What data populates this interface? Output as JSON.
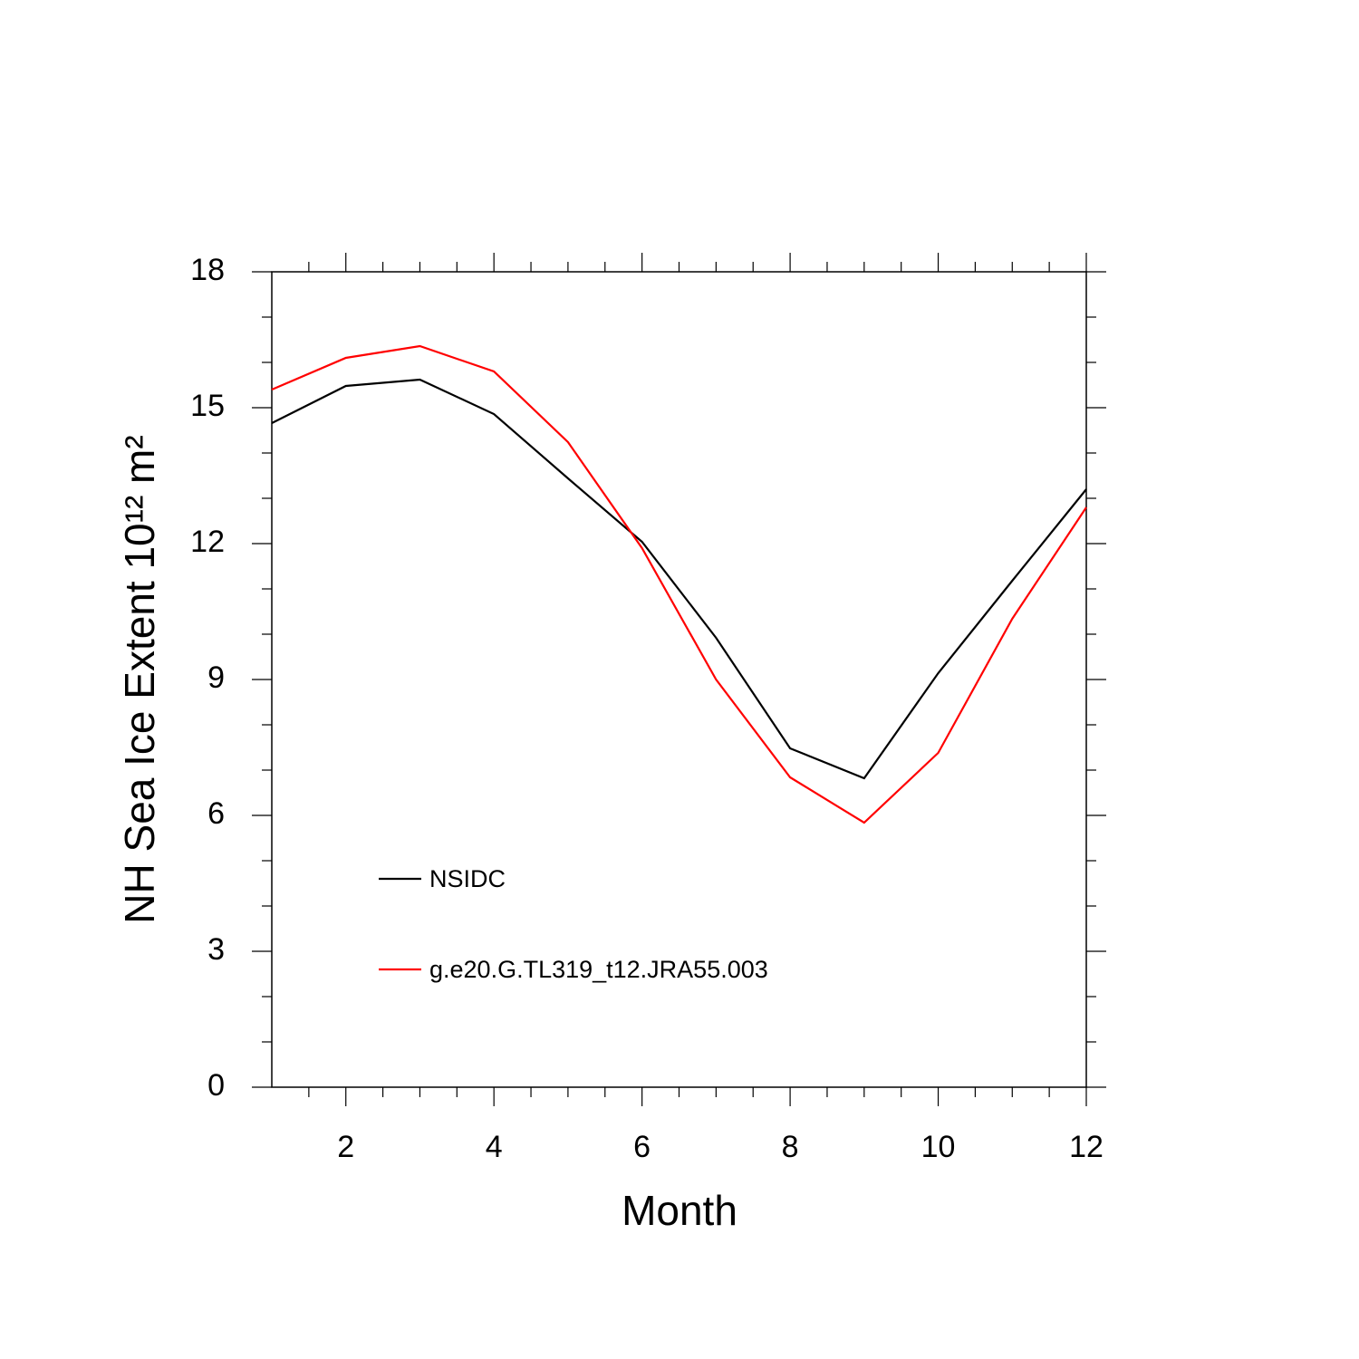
{
  "chart_data": {
    "type": "line",
    "xlabel": "Month",
    "ylabel": "NH Sea Ice Extent 10¹² m²",
    "x": [
      1,
      2,
      3,
      4,
      5,
      6,
      7,
      8,
      9,
      10,
      11,
      12
    ],
    "series": [
      {
        "name": "NSIDC",
        "color": "#000000",
        "values": [
          14.66,
          15.48,
          15.62,
          14.86,
          13.44,
          12.04,
          9.92,
          7.48,
          6.82,
          9.14,
          11.18,
          13.2
        ]
      },
      {
        "name": "g.e20.G.TL319_t12.JRA55.003",
        "color": "#ff0000",
        "values": [
          15.4,
          16.1,
          16.36,
          15.8,
          14.24,
          11.9,
          9.0,
          6.84,
          5.84,
          7.38,
          10.34,
          12.8
        ]
      }
    ],
    "xlim": [
      1,
      12
    ],
    "ylim": [
      0,
      18
    ],
    "xticks": [
      2,
      4,
      6,
      8,
      10,
      12
    ],
    "yticks": [
      0,
      3,
      6,
      9,
      12,
      15,
      18
    ],
    "xminorticks": [
      1.5,
      2.5,
      3,
      3.5,
      4.5,
      5,
      5.5,
      6.5,
      7,
      7.5,
      8.5,
      9,
      9.5,
      10.5,
      11,
      11.5
    ],
    "yminorticks": [
      1,
      2,
      4,
      5,
      7,
      8,
      10,
      11,
      13,
      14,
      16,
      17
    ],
    "grid": false,
    "legend": "lower left"
  }
}
